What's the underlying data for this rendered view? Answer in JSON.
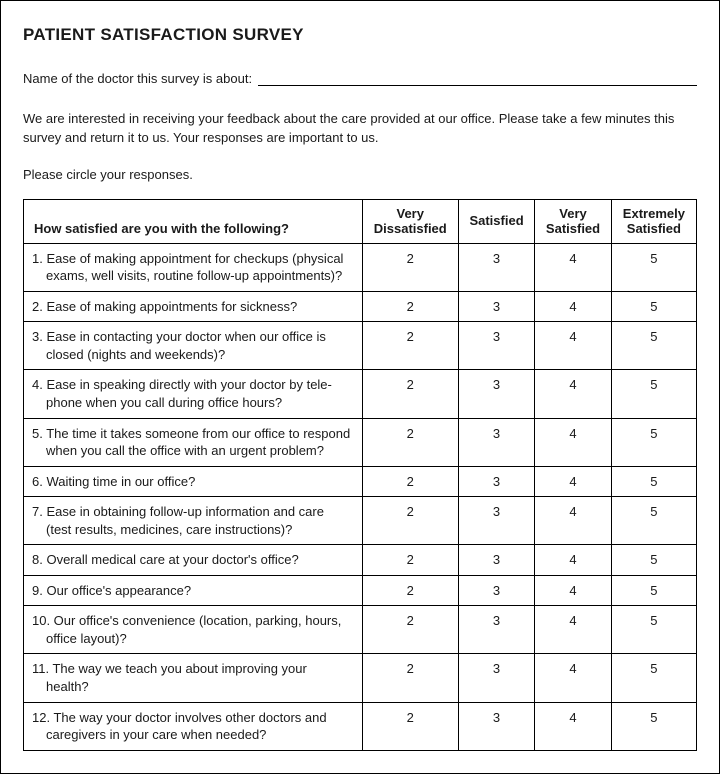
{
  "title": "PATIENT SATISFACTION SURVEY",
  "name_label": "Name of the doctor this survey is about:",
  "intro": "We are interested in receiving your feedback about the care provided at our office. Please take a few minutes this survey and return it to us. Your responses are important to us.",
  "instruction": "Please circle your responses.",
  "table": {
    "question_header": "How satisfied are you with the following?",
    "scale_headers": {
      "col1_line1": "Very",
      "col1_line2": "Dissatisfied",
      "col2": "Satisfied",
      "col3_line1": "Very",
      "col3_line2": "Satisfied",
      "col4_line1": "Extremely",
      "col4_line2": "Satisfied"
    },
    "scale_values": [
      "2",
      "3",
      "4",
      "5"
    ],
    "rows": [
      {
        "text": "1. Ease of making appointment for checkups (physical exams, well visits, routine follow-up appointments)?"
      },
      {
        "text": "2. Ease of making appointments for sickness?"
      },
      {
        "text": "3. Ease in contacting your doctor when our office is closed (nights and weekends)?"
      },
      {
        "text": "4. Ease in speaking directly with your doctor by tele-phone when you call during office hours?"
      },
      {
        "text": "5. The time it takes someone from our office to respond when you call the office with an urgent problem?"
      },
      {
        "text": "6. Waiting time in our office?"
      },
      {
        "text": "7. Ease in obtaining follow-up information and care (test results, medicines, care instructions)?"
      },
      {
        "text": "8. Overall medical care at your doctor's office?"
      },
      {
        "text": "9. Our office's appearance?"
      },
      {
        "text": "10. Our office's convenience (location, parking, hours, office layout)?"
      },
      {
        "text": "11. The way we teach you about improving your health?"
      },
      {
        "text": "12. The way your doctor involves other doctors and caregivers in your care when needed?"
      }
    ]
  },
  "colors": {
    "text": "#1a1a1a",
    "border": "#000000",
    "background": "#ffffff"
  },
  "fonts": {
    "title_pt": 17,
    "body_pt": 13
  }
}
